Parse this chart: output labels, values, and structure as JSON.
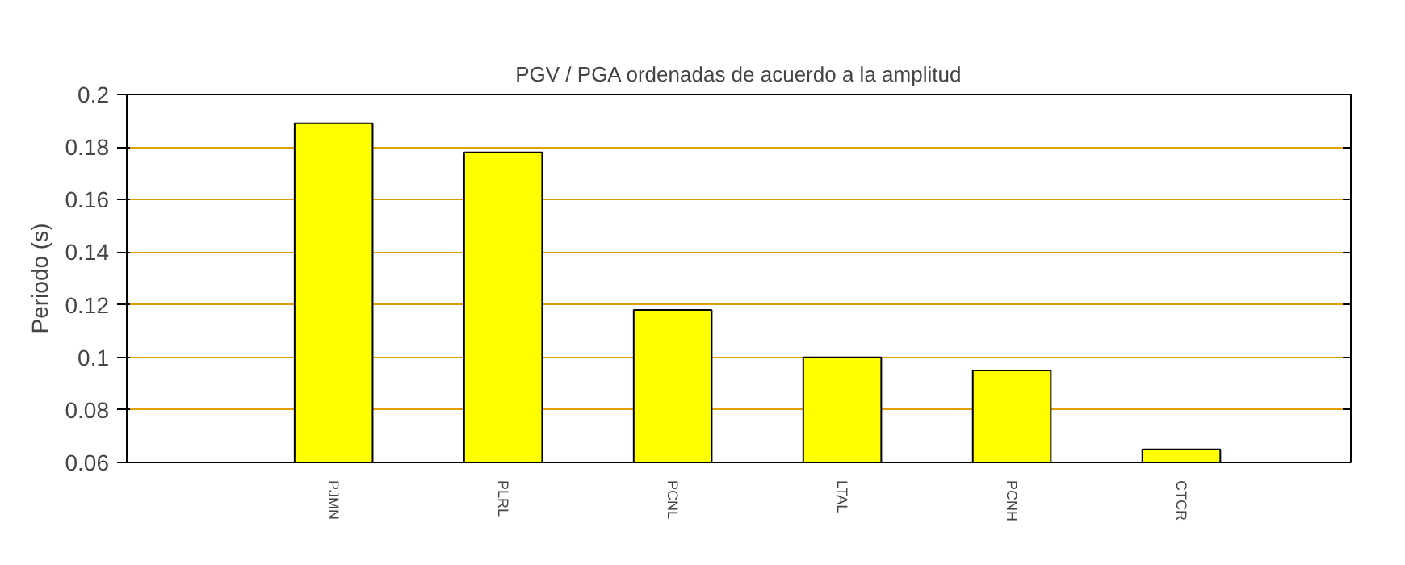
{
  "chart_data": {
    "type": "bar",
    "title": "PGV / PGA ordenadas de acuerdo a la amplitud",
    "ylabel": "Periodo (s)",
    "categories": [
      "PJMN",
      "PLRL",
      "PCNL",
      "LTAL",
      "PCNH",
      "CTCR"
    ],
    "values": [
      0.189,
      0.178,
      0.118,
      0.1,
      0.095,
      0.065
    ],
    "color": "#ffff00",
    "ylim": [
      0.06,
      0.2
    ],
    "yticks": [
      0.06,
      0.08,
      0.1,
      0.12,
      0.14,
      0.16,
      0.18,
      0.2
    ],
    "grid": "y"
  }
}
